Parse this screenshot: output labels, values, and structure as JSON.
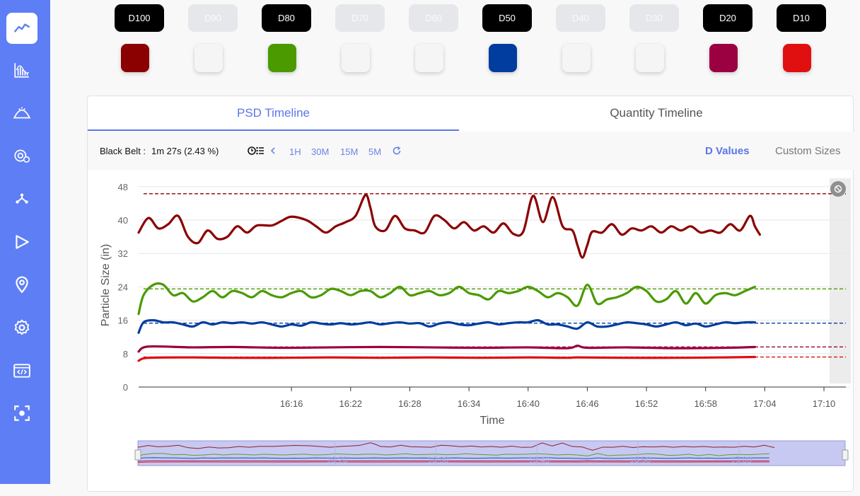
{
  "sidebar": {
    "items": [
      {
        "name": "timeline-chart-icon",
        "active": true
      },
      {
        "name": "histogram-icon",
        "active": false
      },
      {
        "name": "pile-icon",
        "active": false
      },
      {
        "name": "sensor-settings-icon",
        "active": false
      },
      {
        "name": "network-icon",
        "active": false
      },
      {
        "name": "play-icon",
        "active": false
      },
      {
        "name": "location-pin-icon",
        "active": false
      },
      {
        "name": "gear-icon",
        "active": false
      },
      {
        "name": "code-window-icon",
        "active": false
      },
      {
        "name": "focus-target-icon",
        "active": false
      }
    ]
  },
  "d_tiles": [
    {
      "label": "D100",
      "enabled": true,
      "color": "#8b0000"
    },
    {
      "label": "D90",
      "enabled": false,
      "color": "#f5f5f5"
    },
    {
      "label": "D80",
      "enabled": true,
      "color": "#4a9a00"
    },
    {
      "label": "D70",
      "enabled": false,
      "color": "#f5f5f5"
    },
    {
      "label": "D60",
      "enabled": false,
      "color": "#f5f5f5"
    },
    {
      "label": "D50",
      "enabled": true,
      "color": "#003d9e"
    },
    {
      "label": "D40",
      "enabled": false,
      "color": "#f5f5f5"
    },
    {
      "label": "D30",
      "enabled": false,
      "color": "#f5f5f5"
    },
    {
      "label": "D20",
      "enabled": true,
      "color": "#9b0040"
    },
    {
      "label": "D10",
      "enabled": true,
      "color": "#e01010"
    }
  ],
  "tabs": {
    "psd": "PSD Timeline",
    "quantity": "Quantity Timeline"
  },
  "toolbar": {
    "belt_label": "Black Belt :",
    "belt_value": "1m 27s (2.43 %)",
    "ranges": [
      "1H",
      "30M",
      "15M",
      "5M"
    ],
    "d_values": "D Values",
    "custom_sizes": "Custom Sizes"
  },
  "chart_data": {
    "type": "line",
    "xlabel": "Time",
    "ylabel": "Particle Size (in)",
    "ylim": [
      0,
      50
    ],
    "yticks": [
      0,
      8,
      16,
      24,
      32,
      40,
      48
    ],
    "xticks": [
      "16:16",
      "16:22",
      "16:28",
      "16:34",
      "16:40",
      "16:46",
      "16:52",
      "16:58",
      "17:04",
      "17:10"
    ],
    "xrange_minutes": [
      960.5,
      1030.5
    ],
    "series": [
      {
        "name": "D100",
        "color": "#8b0000",
        "ref": 46.3,
        "points": [
          [
            960.5,
            37
          ],
          [
            961.5,
            40.5
          ],
          [
            962.5,
            38
          ],
          [
            963.5,
            39
          ],
          [
            964.5,
            41
          ],
          [
            965.5,
            36
          ],
          [
            966.5,
            34.5
          ],
          [
            967.5,
            37.5
          ],
          [
            968.5,
            35.5
          ],
          [
            969.5,
            36
          ],
          [
            970.5,
            38.5
          ],
          [
            971.5,
            37
          ],
          [
            972.5,
            38.7
          ],
          [
            974,
            38.7
          ],
          [
            975,
            39.8
          ],
          [
            976,
            40.8
          ],
          [
            977.5,
            40
          ],
          [
            978.5,
            38.5
          ],
          [
            979.5,
            37
          ],
          [
            980.5,
            38.5
          ],
          [
            981.5,
            39.5
          ],
          [
            982.5,
            41
          ],
          [
            983.5,
            46
          ],
          [
            984,
            43
          ],
          [
            984.5,
            38.5
          ],
          [
            985.5,
            37.5
          ],
          [
            986.5,
            41
          ],
          [
            987.5,
            38
          ],
          [
            988.5,
            37.5
          ],
          [
            989.5,
            37
          ],
          [
            990.5,
            41
          ],
          [
            991.5,
            40
          ],
          [
            992.5,
            38
          ],
          [
            993.5,
            39.5
          ],
          [
            994.5,
            37.5
          ],
          [
            995.5,
            38.5
          ],
          [
            996.5,
            37
          ],
          [
            997.5,
            39.2
          ],
          [
            998.5,
            36.7
          ],
          [
            999.5,
            37.2
          ],
          [
            1000.5,
            45.8
          ],
          [
            1001.5,
            39.5
          ],
          [
            1002.5,
            45.5
          ],
          [
            1003.5,
            38.5
          ],
          [
            1004.5,
            37.5
          ],
          [
            1005,
            34
          ],
          [
            1005.5,
            31
          ],
          [
            1006,
            34
          ],
          [
            1006.5,
            37.2
          ],
          [
            1007.5,
            37
          ],
          [
            1008.5,
            39
          ],
          [
            1009.5,
            36.5
          ],
          [
            1010.5,
            38
          ],
          [
            1011.5,
            37.5
          ],
          [
            1012.5,
            38.5
          ],
          [
            1013.5,
            37
          ],
          [
            1014.5,
            38.5
          ],
          [
            1015.5,
            37.5
          ],
          [
            1016.5,
            38.5
          ],
          [
            1017.5,
            37
          ],
          [
            1018.5,
            37.5
          ],
          [
            1019.5,
            37
          ],
          [
            1020.5,
            39
          ],
          [
            1021.5,
            37.5
          ],
          [
            1022.5,
            41
          ],
          [
            1023,
            38.5
          ],
          [
            1023.5,
            36.5
          ]
        ]
      },
      {
        "name": "D80",
        "color": "#4a9a00",
        "ref": 23.5,
        "points": [
          [
            960.5,
            17.5
          ],
          [
            961,
            22
          ],
          [
            962,
            24.5
          ],
          [
            963,
            24.5
          ],
          [
            964,
            22
          ],
          [
            965,
            22.5
          ],
          [
            966,
            20.5
          ],
          [
            967,
            21.5
          ],
          [
            968,
            23
          ],
          [
            969,
            21.5
          ],
          [
            970,
            23
          ],
          [
            971,
            22.5
          ],
          [
            972,
            21.5
          ],
          [
            973,
            23
          ],
          [
            974,
            22
          ],
          [
            975,
            21.5
          ],
          [
            976,
            22.5
          ],
          [
            977,
            23
          ],
          [
            978,
            21.5
          ],
          [
            979,
            22
          ],
          [
            980,
            23.5
          ],
          [
            981,
            23
          ],
          [
            982,
            22
          ],
          [
            983,
            23
          ],
          [
            984,
            23
          ],
          [
            985,
            21.5
          ],
          [
            986,
            22.5
          ],
          [
            987,
            24
          ],
          [
            988,
            22
          ],
          [
            989,
            22.5
          ],
          [
            990,
            23
          ],
          [
            991,
            22
          ],
          [
            992,
            22.5
          ],
          [
            993,
            24
          ],
          [
            994,
            22.5
          ],
          [
            995,
            22
          ],
          [
            996,
            21
          ],
          [
            997,
            23
          ],
          [
            998,
            22.5
          ],
          [
            999,
            23
          ],
          [
            1000,
            24
          ],
          [
            1001,
            23
          ],
          [
            1002,
            21.5
          ],
          [
            1003,
            22.5
          ],
          [
            1004,
            21.5
          ],
          [
            1005,
            19.5
          ],
          [
            1006,
            24.5
          ],
          [
            1007,
            20
          ],
          [
            1008,
            21
          ],
          [
            1009,
            21.5
          ],
          [
            1010,
            22.5
          ],
          [
            1011,
            24
          ],
          [
            1012,
            23
          ],
          [
            1013,
            20.5
          ],
          [
            1014,
            21
          ],
          [
            1015,
            23
          ],
          [
            1016,
            20
          ],
          [
            1017,
            22.5
          ],
          [
            1018,
            20
          ],
          [
            1019,
            22
          ],
          [
            1020,
            22.5
          ],
          [
            1021,
            22
          ],
          [
            1022,
            23
          ],
          [
            1023,
            24
          ]
        ]
      },
      {
        "name": "D50",
        "color": "#003d9e",
        "ref": 15.3,
        "points": [
          [
            960.5,
            13
          ],
          [
            961,
            15.5
          ],
          [
            962,
            16
          ],
          [
            963,
            15.5
          ],
          [
            964,
            15.5
          ],
          [
            965,
            15
          ],
          [
            966,
            14.5
          ],
          [
            967,
            15.5
          ],
          [
            968,
            15
          ],
          [
            969,
            15.5
          ],
          [
            970,
            15.3
          ],
          [
            971,
            15.5
          ],
          [
            972,
            15.2
          ],
          [
            973,
            15.5
          ],
          [
            974,
            15
          ],
          [
            975,
            14.5
          ],
          [
            976,
            15
          ],
          [
            977,
            14.7
          ],
          [
            978,
            15.5
          ],
          [
            979,
            15.2
          ],
          [
            980,
            15
          ],
          [
            981,
            15.3
          ],
          [
            982,
            15
          ],
          [
            983,
            15.2
          ],
          [
            984,
            15.5
          ],
          [
            985,
            15
          ],
          [
            986,
            15.3
          ],
          [
            987,
            15.5
          ],
          [
            988,
            15.2
          ],
          [
            989,
            15.3
          ],
          [
            990,
            14.5
          ],
          [
            991,
            15.2
          ],
          [
            992,
            15.5
          ],
          [
            993,
            15
          ],
          [
            994,
            14.8
          ],
          [
            995,
            15.2
          ],
          [
            996,
            15.5
          ],
          [
            997,
            15
          ],
          [
            998,
            15.3
          ],
          [
            999,
            15.5
          ],
          [
            1000,
            15.5
          ],
          [
            1001,
            16
          ],
          [
            1002,
            15
          ],
          [
            1003,
            15
          ],
          [
            1004,
            14.5
          ],
          [
            1005,
            14
          ],
          [
            1006,
            15.5
          ],
          [
            1007,
            14.5
          ],
          [
            1008,
            14.5
          ],
          [
            1009,
            15
          ],
          [
            1010,
            15.5
          ],
          [
            1011,
            15.3
          ],
          [
            1012,
            15
          ],
          [
            1013,
            14.5
          ],
          [
            1014,
            15
          ],
          [
            1015,
            15.5
          ],
          [
            1016,
            14.8
          ],
          [
            1017,
            15.2
          ],
          [
            1018,
            14.5
          ],
          [
            1019,
            15
          ],
          [
            1020,
            15.5
          ],
          [
            1021,
            15.3
          ],
          [
            1022,
            15.5
          ],
          [
            1023,
            15.5
          ]
        ]
      },
      {
        "name": "D20",
        "color": "#9b0040",
        "ref": 9.6,
        "points": [
          [
            960.5,
            8.5
          ],
          [
            961.5,
            9.7
          ],
          [
            966,
            9.5
          ],
          [
            970,
            9.6
          ],
          [
            975,
            9.4
          ],
          [
            980,
            9.5
          ],
          [
            985,
            9.6
          ],
          [
            990,
            9.5
          ],
          [
            995,
            9.4
          ],
          [
            1000,
            9.5
          ],
          [
            1004,
            9.3
          ],
          [
            1005,
            9.9
          ],
          [
            1006,
            9.4
          ],
          [
            1010,
            9.5
          ],
          [
            1015,
            9.3
          ],
          [
            1020,
            9.4
          ],
          [
            1023,
            9.6
          ]
        ]
      },
      {
        "name": "D10",
        "color": "#e01010",
        "ref": 7.2,
        "points": [
          [
            960.5,
            6.3
          ],
          [
            961.5,
            7.0
          ],
          [
            966,
            7.1
          ],
          [
            970,
            7.0
          ],
          [
            975,
            7.0
          ],
          [
            980,
            7.1
          ],
          [
            985,
            7.0
          ],
          [
            990,
            7.1
          ],
          [
            995,
            7.0
          ],
          [
            1000,
            7.1
          ],
          [
            1004,
            7.0
          ],
          [
            1005,
            7.1
          ],
          [
            1010,
            7.0
          ],
          [
            1015,
            7.0
          ],
          [
            1020,
            7.1
          ],
          [
            1023,
            7.2
          ]
        ]
      }
    ],
    "navigator": {
      "xticks": [
        "16:20",
        "16:30",
        "16:40",
        "16:50",
        "17:00"
      ]
    }
  }
}
